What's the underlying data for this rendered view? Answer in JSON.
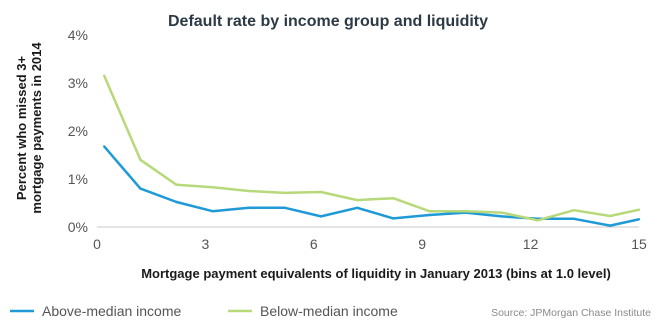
{
  "chart_data": {
    "type": "line",
    "title": "Default rate by income group and liquidity",
    "ylabel_lines": [
      "Percent who missed 3+",
      "mortgage payments in 2014"
    ],
    "xlabel": "Mortgage payment equivalents of liquidity in January 2013 (bins at 1.0 level)",
    "xlim": [
      0,
      15
    ],
    "ylim": [
      0,
      4
    ],
    "x_ticks": [
      0,
      3,
      6,
      9,
      12,
      15
    ],
    "y_ticks": [
      {
        "value": 0,
        "label": "0%"
      },
      {
        "value": 1,
        "label": "1%"
      },
      {
        "value": 2,
        "label": "2%"
      },
      {
        "value": 3,
        "label": "3%"
      },
      {
        "value": 4,
        "label": "4%"
      }
    ],
    "grid": false,
    "legend_position": "bottom-left",
    "x": [
      0.2,
      1.2,
      2.2,
      3.2,
      4.2,
      5.2,
      6.2,
      7.2,
      8.2,
      9.2,
      10.2,
      11.2,
      12.2,
      13.2,
      14.2,
      15
    ],
    "series": [
      {
        "name": "Above-median income",
        "color": "#1f9ad6",
        "values": [
          1.68,
          0.8,
          0.52,
          0.33,
          0.4,
          0.4,
          0.22,
          0.4,
          0.18,
          0.25,
          0.3,
          0.22,
          0.17,
          0.17,
          0.03,
          0.16
        ]
      },
      {
        "name": "Below-median income",
        "color": "#b7d97a",
        "values": [
          3.15,
          1.4,
          0.88,
          0.83,
          0.75,
          0.71,
          0.73,
          0.56,
          0.6,
          0.33,
          0.33,
          0.3,
          0.14,
          0.35,
          0.23,
          0.36
        ]
      }
    ],
    "source": "Source: JPMorgan Chase Institute"
  }
}
